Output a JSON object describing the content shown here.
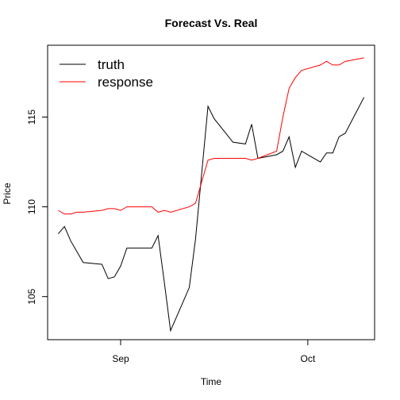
{
  "chart_data": {
    "type": "line",
    "title": "Forecast Vs. Real",
    "x_label": "Time",
    "y_label": "Price",
    "x": [
      -10,
      -9,
      -8,
      -7,
      -6,
      -3,
      -2,
      -1,
      0,
      1,
      5,
      6,
      7,
      8,
      11,
      12,
      14,
      15,
      18,
      20,
      21,
      22,
      25,
      26,
      27,
      28,
      29,
      32,
      33,
      34,
      35,
      36,
      39
    ],
    "series": [
      {
        "name": "truth",
        "color": "#000000",
        "values": [
          108.5,
          108.9,
          108.1,
          107.5,
          106.9,
          106.8,
          106.0,
          106.1,
          106.7,
          107.7,
          107.7,
          108.4,
          105.8,
          103.1,
          105.5,
          108.2,
          115.6,
          114.9,
          113.6,
          113.5,
          114.6,
          112.7,
          112.9,
          113.1,
          113.9,
          112.2,
          113.1,
          112.5,
          113.0,
          113.0,
          113.9,
          114.1,
          116.1
        ]
      },
      {
        "name": "response",
        "color": "#ff0000",
        "values": [
          109.8,
          109.6,
          109.6,
          109.7,
          109.7,
          109.8,
          109.9,
          109.9,
          109.8,
          110.0,
          110.0,
          109.7,
          109.8,
          109.7,
          110.0,
          110.2,
          112.6,
          112.7,
          112.7,
          112.7,
          112.6,
          112.7,
          113.1,
          115.0,
          116.6,
          117.2,
          117.6,
          117.9,
          118.1,
          117.9,
          117.9,
          118.1,
          118.3
        ]
      }
    ],
    "xlim": [
      -11.7,
      40.7
    ],
    "xticks": [
      {
        "value": 0,
        "label": "Sep"
      },
      {
        "value": 30,
        "label": "Oct"
      }
    ],
    "ylim": [
      102.6,
      119.0
    ],
    "yticks": [
      105,
      110,
      115
    ],
    "legend": "top-left",
    "grid": false
  }
}
